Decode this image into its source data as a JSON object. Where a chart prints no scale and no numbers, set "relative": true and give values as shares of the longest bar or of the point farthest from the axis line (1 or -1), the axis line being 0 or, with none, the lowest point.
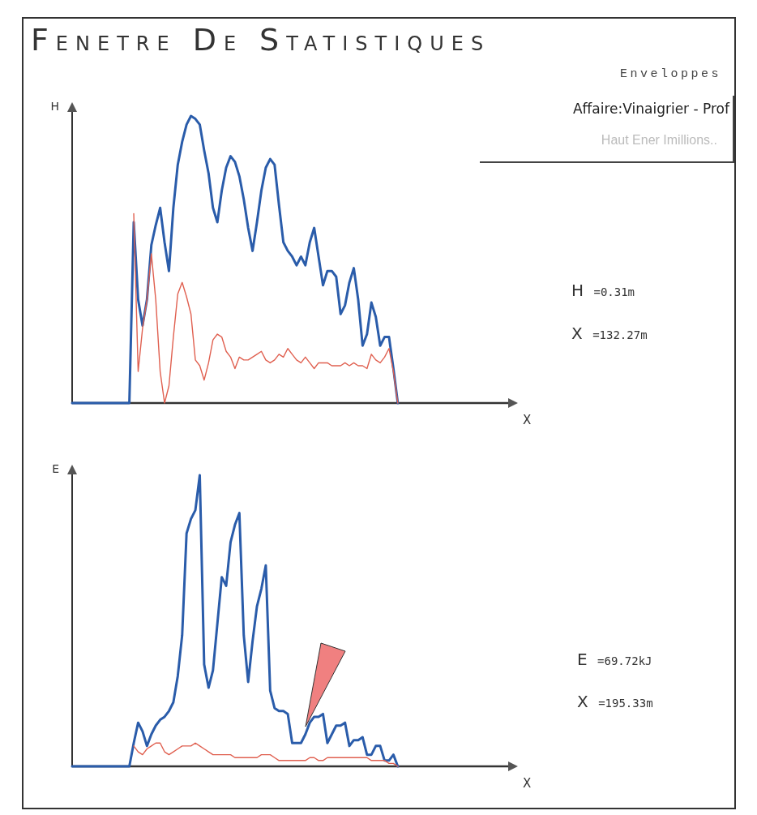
{
  "chart_data": [
    {
      "type": "line",
      "title": "FENETRE DE STATISTIQUES",
      "ylabel": "H",
      "xlabel": "X",
      "relative": true,
      "legend": false,
      "annotations": [
        "Enveloppes",
        "Affaire:Vinaigrier - Prof",
        "Haut Ener Imillions..",
        "H =0.31m",
        "X =132.27m"
      ],
      "categories": [
        null,
        null,
        null,
        null,
        null,
        null,
        null,
        null,
        null,
        null,
        null,
        null,
        null,
        null,
        null,
        null,
        null,
        null,
        null,
        null,
        null,
        null,
        null,
        null,
        null,
        null,
        null,
        null,
        null,
        null,
        null,
        null,
        null,
        null,
        null,
        null,
        null,
        null,
        null,
        null,
        null,
        null,
        null,
        null,
        null,
        null,
        null,
        null,
        null,
        null,
        null,
        null,
        null,
        null,
        null,
        null,
        null,
        null,
        null,
        null,
        null,
        null,
        null,
        null,
        null,
        null,
        null,
        null,
        null,
        null,
        null,
        null,
        null,
        null,
        null,
        null,
        null,
        null,
        null,
        null,
        null,
        null,
        null,
        null,
        null,
        null,
        null,
        null,
        null,
        null,
        null,
        null,
        null,
        null,
        null,
        null,
        null,
        null,
        null,
        null,
        null
      ],
      "series": [
        {
          "color": "#2a5caa",
          "values": [
            0,
            0,
            0,
            0,
            0,
            0,
            0,
            0,
            0,
            0,
            0,
            0,
            0,
            0,
            0.63,
            0.36,
            0.27,
            0.36,
            0.55,
            0.62,
            0.68,
            0.56,
            0.46,
            0.68,
            0.83,
            0.91,
            0.97,
            1.0,
            0.99,
            0.97,
            0.88,
            0.8,
            0.68,
            0.63,
            0.74,
            0.82,
            0.86,
            0.84,
            0.79,
            0.71,
            0.61,
            0.53,
            0.63,
            0.74,
            0.82,
            0.85,
            0.83,
            0.69,
            0.56,
            0.53,
            0.51,
            0.48,
            0.51,
            0.48,
            0.56,
            0.61,
            0.51,
            0.41,
            0.46,
            0.46,
            0.44,
            0.31,
            0.34,
            0.42,
            0.47,
            0.36,
            0.2,
            0.24,
            0.35,
            0.3,
            0.2,
            0.23,
            0.23,
            0.12,
            0,
            null,
            null,
            null,
            null,
            null,
            null,
            null,
            null,
            null,
            null,
            null,
            null,
            null,
            null,
            null,
            null,
            null,
            null,
            null,
            null,
            null,
            null,
            null,
            null,
            null,
            null
          ]
        },
        {
          "color": "#e06050",
          "values": [
            null,
            null,
            null,
            null,
            null,
            null,
            null,
            null,
            null,
            null,
            null,
            null,
            null,
            null,
            0.66,
            0.11,
            0.26,
            0.36,
            0.52,
            0.36,
            0.11,
            0,
            0.06,
            0.23,
            0.38,
            0.42,
            0.37,
            0.31,
            0.15,
            0.13,
            0.08,
            0.14,
            0.22,
            0.24,
            0.23,
            0.18,
            0.16,
            0.12,
            0.16,
            0.15,
            0.15,
            0.16,
            0.17,
            0.18,
            0.15,
            0.14,
            0.15,
            0.17,
            0.16,
            0.19,
            0.17,
            0.15,
            0.14,
            0.16,
            0.14,
            0.12,
            0.14,
            0.14,
            0.14,
            0.13,
            0.13,
            0.13,
            0.14,
            0.13,
            0.14,
            0.13,
            0.13,
            0.12,
            0.17,
            0.15,
            0.14,
            0.16,
            0.19,
            0.11,
            0,
            null,
            null,
            null,
            null,
            null,
            null,
            null,
            null,
            null,
            null,
            null,
            null,
            null,
            null,
            null,
            null,
            null,
            null,
            null,
            null,
            null,
            null,
            null,
            null,
            null,
            null
          ]
        }
      ]
    },
    {
      "type": "line",
      "ylabel": "E",
      "xlabel": "X",
      "relative": true,
      "legend": false,
      "annotations": [
        "E =69.72kJ",
        "X =195.33m"
      ],
      "categories": [
        null,
        null,
        null,
        null,
        null,
        null,
        null,
        null,
        null,
        null,
        null,
        null,
        null,
        null,
        null,
        null,
        null,
        null,
        null,
        null,
        null,
        null,
        null,
        null,
        null,
        null,
        null,
        null,
        null,
        null,
        null,
        null,
        null,
        null,
        null,
        null,
        null,
        null,
        null,
        null,
        null,
        null,
        null,
        null,
        null,
        null,
        null,
        null,
        null,
        null,
        null,
        null,
        null,
        null,
        null,
        null,
        null,
        null,
        null,
        null,
        null,
        null,
        null,
        null,
        null,
        null,
        null,
        null,
        null,
        null,
        null,
        null,
        null,
        null,
        null,
        null,
        null,
        null,
        null,
        null,
        null,
        null,
        null,
        null,
        null,
        null,
        null,
        null,
        null,
        null,
        null,
        null,
        null,
        null,
        null,
        null,
        null,
        null,
        null,
        null,
        null
      ],
      "series": [
        {
          "color": "#2a5caa",
          "values": [
            0,
            0,
            0,
            0,
            0,
            0,
            0,
            0,
            0,
            0,
            0,
            0,
            0,
            0,
            0.08,
            0.15,
            0.12,
            0.07,
            0.11,
            0.14,
            0.16,
            0.17,
            0.19,
            0.22,
            0.31,
            0.45,
            0.8,
            0.85,
            0.88,
            1.0,
            0.35,
            0.27,
            0.33,
            0.49,
            0.65,
            0.62,
            0.77,
            0.83,
            0.87,
            0.45,
            0.29,
            0.43,
            0.55,
            0.61,
            0.69,
            0.26,
            0.2,
            0.19,
            0.19,
            0.18,
            0.08,
            0.08,
            0.08,
            0.11,
            0.15,
            0.17,
            0.17,
            0.18,
            0.08,
            0.11,
            0.14,
            0.14,
            0.15,
            0.07,
            0.09,
            0.09,
            0.1,
            0.04,
            0.04,
            0.07,
            0.07,
            0.02,
            0.02,
            0.04,
            0,
            null,
            null,
            null,
            null,
            null,
            null,
            null,
            null,
            null,
            null,
            null,
            null,
            null,
            null,
            null,
            null,
            null,
            null,
            null,
            null,
            null,
            null,
            null,
            null,
            null,
            null
          ]
        },
        {
          "color": "#e06050",
          "values": [
            null,
            null,
            null,
            null,
            null,
            null,
            null,
            null,
            null,
            null,
            null,
            null,
            null,
            null,
            0.07,
            0.05,
            0.04,
            0.06,
            0.07,
            0.08,
            0.08,
            0.05,
            0.04,
            0.05,
            0.06,
            0.07,
            0.07,
            0.07,
            0.08,
            0.07,
            0.06,
            0.05,
            0.04,
            0.04,
            0.04,
            0.04,
            0.04,
            0.03,
            0.03,
            0.03,
            0.03,
            0.03,
            0.03,
            0.04,
            0.04,
            0.04,
            0.03,
            0.02,
            0.02,
            0.02,
            0.02,
            0.02,
            0.02,
            0.02,
            0.03,
            0.03,
            0.02,
            0.02,
            0.03,
            0.03,
            0.03,
            0.03,
            0.03,
            0.03,
            0.03,
            0.03,
            0.03,
            0.03,
            0.02,
            0.02,
            0.02,
            0.02,
            0.01,
            0.01,
            0,
            null,
            null,
            null,
            null,
            null,
            null,
            null,
            null,
            null,
            null,
            null,
            null,
            null,
            null,
            null,
            null,
            null,
            null,
            null,
            null,
            null,
            null,
            null,
            null,
            null,
            null
          ]
        }
      ]
    }
  ]
}
